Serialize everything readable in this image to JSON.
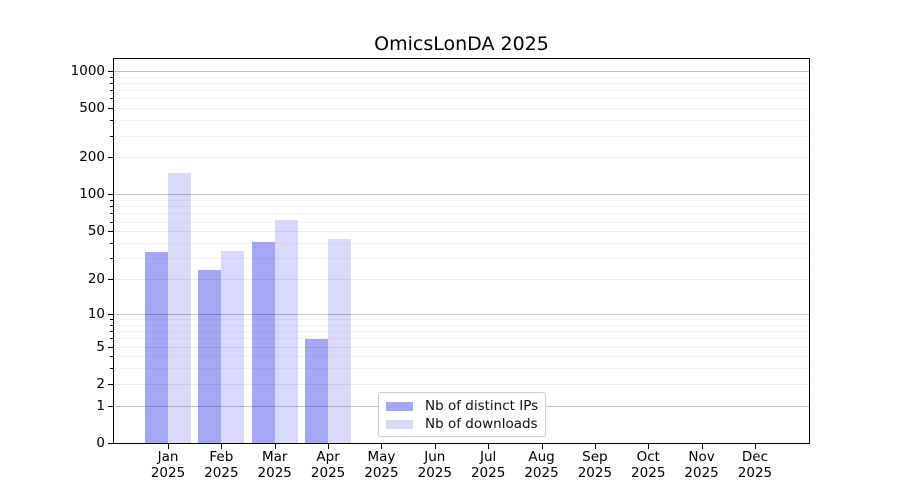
{
  "chart_data": {
    "type": "bar",
    "title": "OmicsLonDA 2025",
    "categories": [
      "Jan 2025",
      "Feb 2025",
      "Mar 2025",
      "Apr 2025",
      "May 2025",
      "Jun 2025",
      "Jul 2025",
      "Aug 2025",
      "Sep 2025",
      "Oct 2025",
      "Nov 2025",
      "Dec 2025"
    ],
    "x_months": [
      "Jan",
      "Feb",
      "Mar",
      "Apr",
      "May",
      "Jun",
      "Jul",
      "Aug",
      "Sep",
      "Oct",
      "Nov",
      "Dec"
    ],
    "x_year": "2025",
    "series": [
      {
        "name": "Nb of distinct IPs",
        "color": "#a6a6f6",
        "fill": "rgba(0,0,230,0.35)",
        "values": [
          34,
          24,
          41,
          6,
          0,
          0,
          0,
          0,
          0,
          0,
          0,
          0
        ]
      },
      {
        "name": "Nb of downloads",
        "color": "#d9d9fa",
        "fill": "rgba(0,0,225,0.15)",
        "values": [
          150,
          35,
          63,
          44,
          0,
          0,
          0,
          0,
          0,
          0,
          0,
          0
        ]
      }
    ],
    "yticks": [
      0,
      1,
      2,
      5,
      10,
      20,
      50,
      100,
      200,
      500,
      1000
    ],
    "y_major_ticks": [
      1,
      10,
      100,
      1000
    ],
    "yscale": "symlog: position = log10(value + 1)",
    "ylim": [
      0,
      1270
    ],
    "grid": "horizontal major + minor gridlines",
    "legend_position": "inside, lower center"
  }
}
